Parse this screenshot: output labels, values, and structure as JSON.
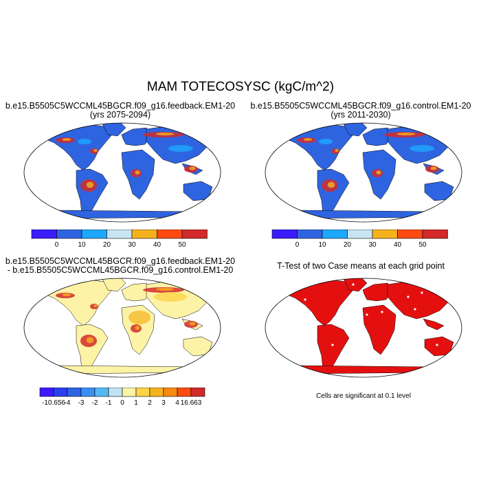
{
  "title": "MAM TOTECOSYSC (kgC/m^2)",
  "panels": [
    {
      "line1": "b.e15.B5505C5WCCML45BGCR.f09_g16.feedback.EM1-20",
      "line2": "(yrs 2075-2094)"
    },
    {
      "line1": "b.e15.B5505C5WCCML45BGCR.f09_g16.control.EM1-20",
      "line2": "(yrs 2011-2030)"
    },
    {
      "line1": "b.e15.B5505C5WCCML45BGCR.f09_g16.feedback.EM1-20",
      "line2": "- b.e15.B5505C5WCCML45BGCR.f09_g16.control.EM1-20"
    },
    {
      "line1": "T-Test of two Case means at each grid point",
      "line2": ""
    }
  ],
  "colorbar_top": {
    "colors": [
      "#3a1cff",
      "#2f64e0",
      "#1ea7ff",
      "#c8e4f2",
      "#f5b21d",
      "#ff4b12",
      "#d22a2a"
    ],
    "labels": [
      "0",
      "10",
      "20",
      "30",
      "40",
      "50"
    ]
  },
  "colorbar_diff": {
    "colors": [
      "#3a1cff",
      "#2b3fee",
      "#2f64e0",
      "#3a8ff4",
      "#55b7f0",
      "#bfe2f4",
      "#fdf3a6",
      "#fbd447",
      "#f5b21d",
      "#f58a14",
      "#ff4b12",
      "#d22a2a"
    ],
    "labels": [
      "-10.656",
      "-4",
      "-3",
      "-2",
      "-1",
      "0",
      "1",
      "2",
      "3",
      "4",
      "16.663"
    ]
  },
  "note": "Cells are significant at 0.1 level",
  "map_colors": {
    "ocean": "#ffffff",
    "land_top": "#2f64e0",
    "antarctica_top": "#2f64e0",
    "land_diff": "#fdf3a6",
    "antarctica_diff": "#fdf3a6",
    "sig": "#e41010"
  }
}
